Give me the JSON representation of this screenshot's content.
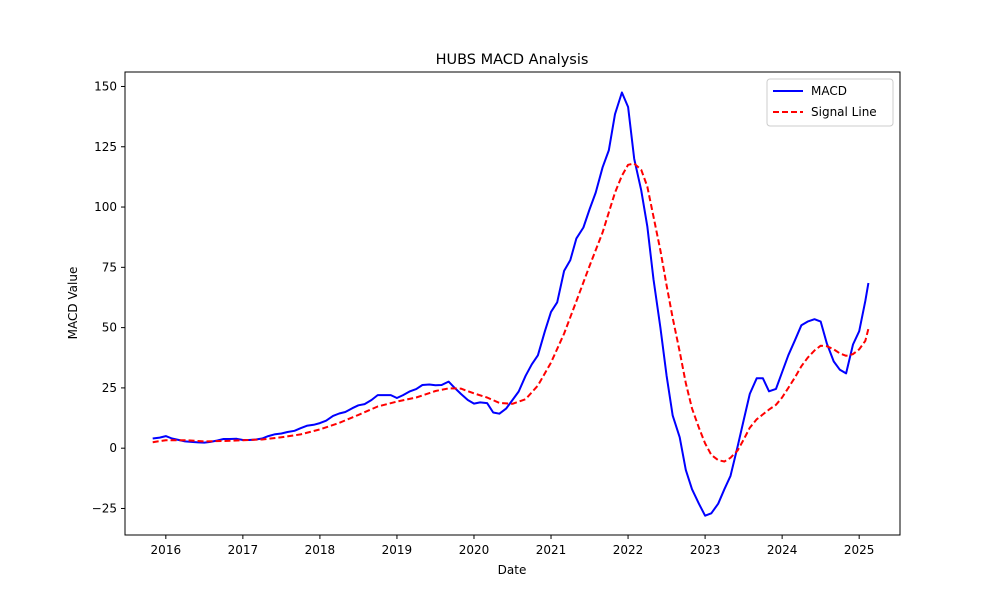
{
  "chart_data": {
    "type": "line",
    "title": "HUBS MACD Analysis",
    "xlabel": "Date",
    "ylabel": "MACD Value",
    "x_range": [
      2015.47,
      2025.53
    ],
    "ylim": [
      -36,
      156
    ],
    "x_ticks": [
      {
        "value": 2016,
        "label": "2016"
      },
      {
        "value": 2017,
        "label": "2017"
      },
      {
        "value": 2018,
        "label": "2018"
      },
      {
        "value": 2019,
        "label": "2019"
      },
      {
        "value": 2020,
        "label": "2020"
      },
      {
        "value": 2021,
        "label": "2021"
      },
      {
        "value": 2022,
        "label": "2022"
      },
      {
        "value": 2023,
        "label": "2023"
      },
      {
        "value": 2024,
        "label": "2024"
      },
      {
        "value": 2025,
        "label": "2025"
      }
    ],
    "y_ticks": [
      {
        "value": -25,
        "label": "−25"
      },
      {
        "value": 0,
        "label": "0"
      },
      {
        "value": 25,
        "label": "25"
      },
      {
        "value": 50,
        "label": "50"
      },
      {
        "value": 75,
        "label": "75"
      },
      {
        "value": 100,
        "label": "100"
      },
      {
        "value": 125,
        "label": "125"
      },
      {
        "value": 150,
        "label": "150"
      }
    ],
    "grid": false,
    "legend_position": "top-right",
    "series": [
      {
        "name": "MACD",
        "color": "#0000ff",
        "style": "solid",
        "points": [
          [
            2015.83,
            4.0
          ],
          [
            2015.92,
            4.4
          ],
          [
            2016.0,
            5.0
          ],
          [
            2016.08,
            4.0
          ],
          [
            2016.17,
            3.4
          ],
          [
            2016.25,
            2.8
          ],
          [
            2016.33,
            2.6
          ],
          [
            2016.42,
            2.4
          ],
          [
            2016.5,
            2.3
          ],
          [
            2016.58,
            2.6
          ],
          [
            2016.67,
            3.2
          ],
          [
            2016.75,
            3.8
          ],
          [
            2016.83,
            3.8
          ],
          [
            2016.92,
            3.9
          ],
          [
            2017.0,
            3.4
          ],
          [
            2017.08,
            3.4
          ],
          [
            2017.17,
            3.6
          ],
          [
            2017.25,
            4.0
          ],
          [
            2017.33,
            5.0
          ],
          [
            2017.42,
            5.8
          ],
          [
            2017.5,
            6.1
          ],
          [
            2017.58,
            6.7
          ],
          [
            2017.67,
            7.2
          ],
          [
            2017.75,
            8.3
          ],
          [
            2017.83,
            9.3
          ],
          [
            2017.92,
            9.7
          ],
          [
            2018.0,
            10.4
          ],
          [
            2018.08,
            11.4
          ],
          [
            2018.17,
            13.4
          ],
          [
            2018.25,
            14.4
          ],
          [
            2018.33,
            15.0
          ],
          [
            2018.42,
            16.6
          ],
          [
            2018.5,
            17.8
          ],
          [
            2018.58,
            18.3
          ],
          [
            2018.67,
            20.0
          ],
          [
            2018.75,
            22.0
          ],
          [
            2018.83,
            22.0
          ],
          [
            2018.92,
            22.0
          ],
          [
            2019.0,
            20.8
          ],
          [
            2019.08,
            22.0
          ],
          [
            2019.17,
            23.6
          ],
          [
            2019.25,
            24.5
          ],
          [
            2019.33,
            26.2
          ],
          [
            2019.42,
            26.4
          ],
          [
            2019.5,
            26.1
          ],
          [
            2019.58,
            26.2
          ],
          [
            2019.67,
            27.6
          ],
          [
            2019.75,
            25.0
          ],
          [
            2019.83,
            22.5
          ],
          [
            2019.92,
            20.0
          ],
          [
            2020.0,
            18.5
          ],
          [
            2020.08,
            19.0
          ],
          [
            2020.17,
            18.7
          ],
          [
            2020.25,
            14.8
          ],
          [
            2020.33,
            14.3
          ],
          [
            2020.42,
            16.5
          ],
          [
            2020.5,
            20.0
          ],
          [
            2020.58,
            23.5
          ],
          [
            2020.67,
            30.0
          ],
          [
            2020.75,
            34.8
          ],
          [
            2020.83,
            38.5
          ],
          [
            2020.92,
            48.5
          ],
          [
            2021.0,
            56.5
          ],
          [
            2021.08,
            60.5
          ],
          [
            2021.17,
            73.5
          ],
          [
            2021.25,
            78.0
          ],
          [
            2021.33,
            87.0
          ],
          [
            2021.42,
            91.5
          ],
          [
            2021.5,
            99.0
          ],
          [
            2021.58,
            106.0
          ],
          [
            2021.67,
            116.5
          ],
          [
            2021.75,
            123.5
          ],
          [
            2021.83,
            138.5
          ],
          [
            2021.92,
            147.5
          ],
          [
            2022.0,
            141.5
          ],
          [
            2022.08,
            120.0
          ],
          [
            2022.17,
            107.0
          ],
          [
            2022.25,
            92.0
          ],
          [
            2022.33,
            70.0
          ],
          [
            2022.42,
            50.0
          ],
          [
            2022.5,
            30.0
          ],
          [
            2022.58,
            13.5
          ],
          [
            2022.67,
            4.5
          ],
          [
            2022.75,
            -9.0
          ],
          [
            2022.83,
            -17.0
          ],
          [
            2022.92,
            -23.0
          ],
          [
            2023.0,
            -28.0
          ],
          [
            2023.08,
            -27.0
          ],
          [
            2023.17,
            -23.0
          ],
          [
            2023.25,
            -17.0
          ],
          [
            2023.33,
            -11.5
          ],
          [
            2023.42,
            0.5
          ],
          [
            2023.5,
            11.5
          ],
          [
            2023.58,
            22.5
          ],
          [
            2023.67,
            29.0
          ],
          [
            2023.75,
            29.0
          ],
          [
            2023.83,
            23.6
          ],
          [
            2023.92,
            24.6
          ],
          [
            2024.0,
            31.5
          ],
          [
            2024.08,
            38.5
          ],
          [
            2024.17,
            45.0
          ],
          [
            2024.25,
            51.0
          ],
          [
            2024.33,
            52.5
          ],
          [
            2024.42,
            53.5
          ],
          [
            2024.5,
            52.5
          ],
          [
            2024.58,
            43.5
          ],
          [
            2024.67,
            36.0
          ],
          [
            2024.75,
            32.5
          ],
          [
            2024.83,
            31.0
          ],
          [
            2024.92,
            43.0
          ],
          [
            2025.0,
            48.5
          ],
          [
            2025.08,
            61.0
          ],
          [
            2025.12,
            68.5
          ]
        ]
      },
      {
        "name": "Signal Line",
        "color": "#ff0000",
        "style": "dashed",
        "points": [
          [
            2015.83,
            2.5
          ],
          [
            2016.0,
            3.3
          ],
          [
            2016.25,
            3.3
          ],
          [
            2016.5,
            2.8
          ],
          [
            2016.75,
            3.0
          ],
          [
            2017.0,
            3.3
          ],
          [
            2017.25,
            3.6
          ],
          [
            2017.5,
            4.5
          ],
          [
            2017.75,
            5.7
          ],
          [
            2018.0,
            7.8
          ],
          [
            2018.25,
            10.5
          ],
          [
            2018.5,
            13.8
          ],
          [
            2018.75,
            17.3
          ],
          [
            2019.0,
            19.3
          ],
          [
            2019.25,
            21.0
          ],
          [
            2019.5,
            23.7
          ],
          [
            2019.67,
            24.8
          ],
          [
            2019.83,
            24.7
          ],
          [
            2020.0,
            22.7
          ],
          [
            2020.17,
            21.0
          ],
          [
            2020.33,
            18.8
          ],
          [
            2020.5,
            18.4
          ],
          [
            2020.67,
            20.3
          ],
          [
            2020.83,
            26.0
          ],
          [
            2021.0,
            35.5
          ],
          [
            2021.17,
            47.5
          ],
          [
            2021.33,
            61.0
          ],
          [
            2021.5,
            75.5
          ],
          [
            2021.67,
            89.5
          ],
          [
            2021.83,
            106.0
          ],
          [
            2021.92,
            113.0
          ],
          [
            2022.0,
            117.5
          ],
          [
            2022.08,
            118.0
          ],
          [
            2022.17,
            115.5
          ],
          [
            2022.25,
            108.5
          ],
          [
            2022.33,
            96.0
          ],
          [
            2022.42,
            82.0
          ],
          [
            2022.5,
            67.5
          ],
          [
            2022.58,
            54.0
          ],
          [
            2022.67,
            40.0
          ],
          [
            2022.75,
            27.0
          ],
          [
            2022.83,
            16.5
          ],
          [
            2022.92,
            8.5
          ],
          [
            2023.0,
            2.0
          ],
          [
            2023.08,
            -2.8
          ],
          [
            2023.17,
            -5.0
          ],
          [
            2023.25,
            -5.5
          ],
          [
            2023.33,
            -4.0
          ],
          [
            2023.42,
            -1.0
          ],
          [
            2023.5,
            3.5
          ],
          [
            2023.58,
            8.5
          ],
          [
            2023.67,
            12.0
          ],
          [
            2023.75,
            14.0
          ],
          [
            2023.83,
            16.0
          ],
          [
            2023.92,
            18.0
          ],
          [
            2024.0,
            21.0
          ],
          [
            2024.08,
            25.0
          ],
          [
            2024.17,
            29.5
          ],
          [
            2024.25,
            34.0
          ],
          [
            2024.33,
            37.5
          ],
          [
            2024.42,
            40.5
          ],
          [
            2024.5,
            42.5
          ],
          [
            2024.58,
            42.3
          ],
          [
            2024.67,
            41.0
          ],
          [
            2024.75,
            39.3
          ],
          [
            2024.83,
            38.3
          ],
          [
            2024.92,
            39.0
          ],
          [
            2025.0,
            41.0
          ],
          [
            2025.08,
            44.5
          ],
          [
            2025.12,
            49.5
          ]
        ]
      }
    ]
  }
}
